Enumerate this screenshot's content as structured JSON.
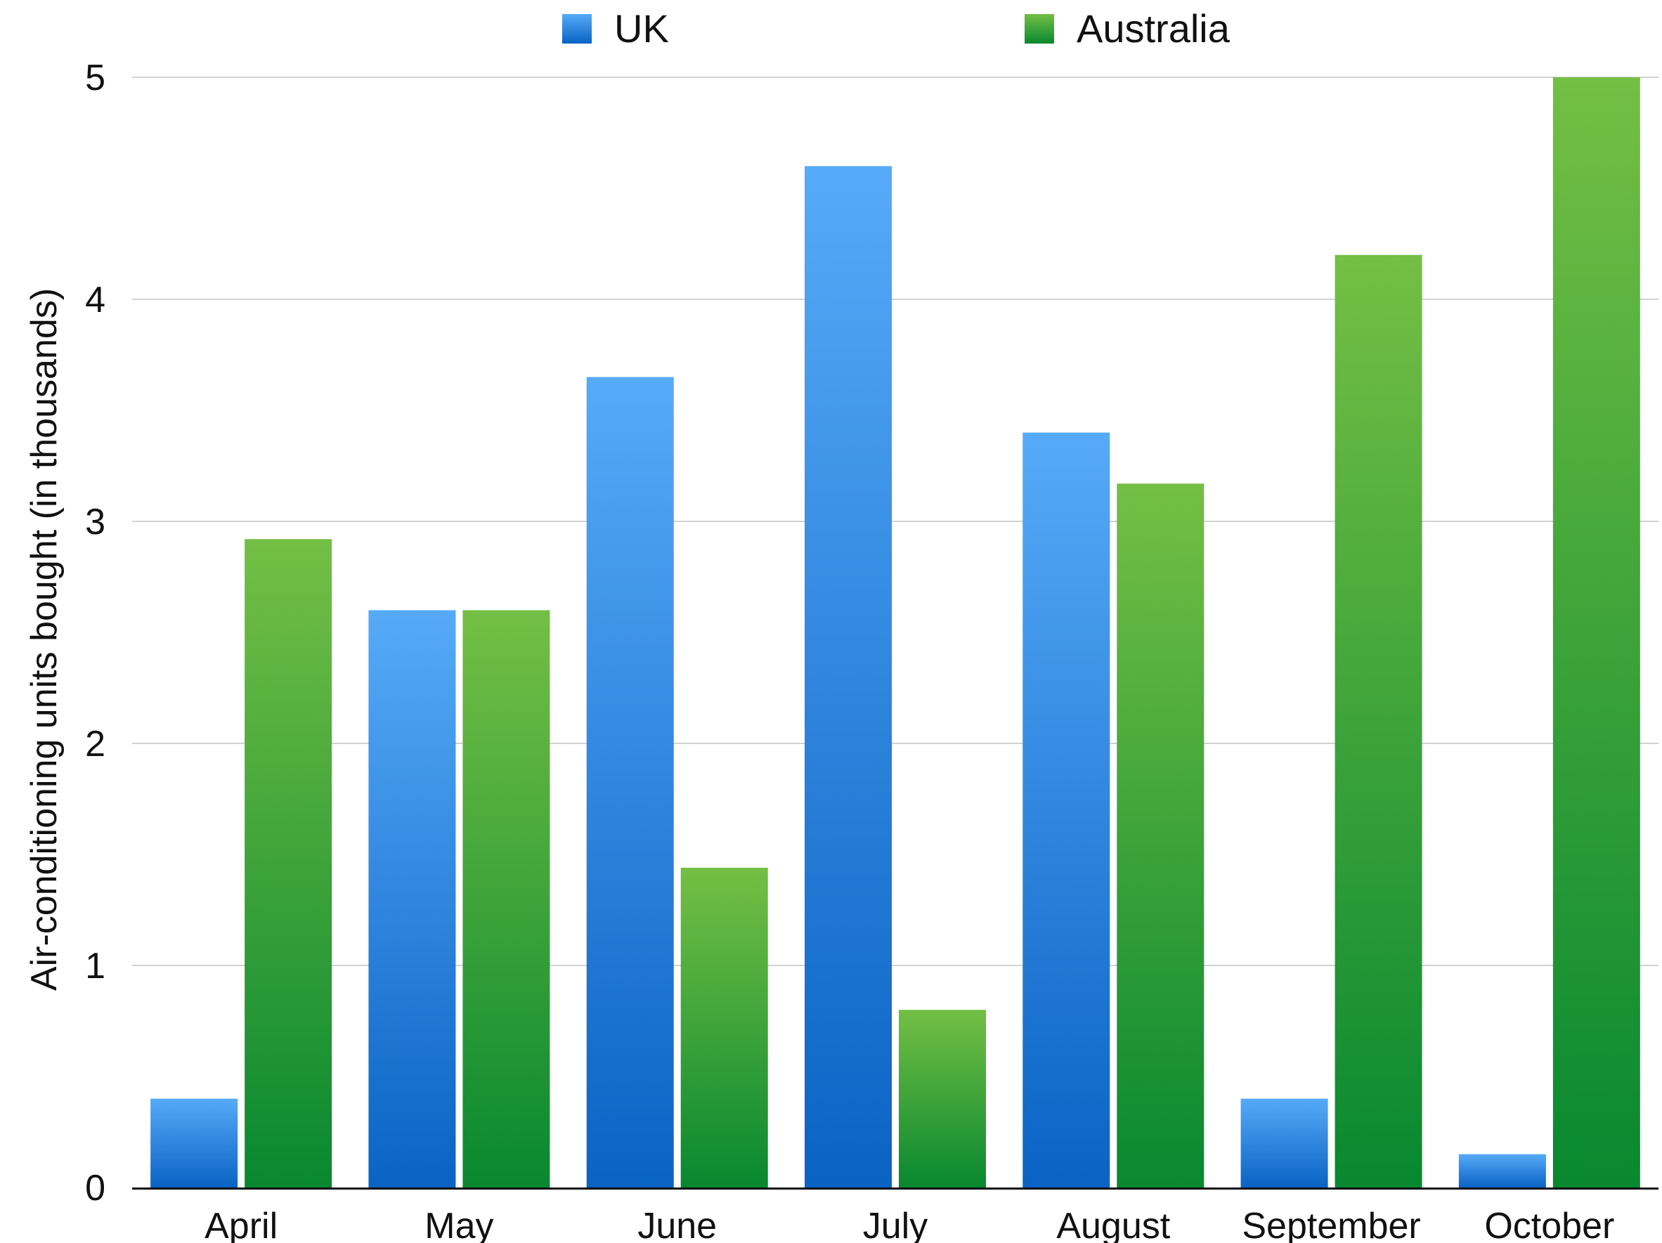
{
  "chart_data": {
    "type": "bar",
    "title": "",
    "xlabel": "",
    "ylabel": "Air-conditioning units bought (in thousands)",
    "categories": [
      "April",
      "May",
      "June",
      "July",
      "August",
      "September",
      "October"
    ],
    "series": [
      {
        "name": "UK",
        "color": "#2f8ae6",
        "values": [
          0.4,
          2.6,
          3.65,
          4.6,
          3.4,
          0.4,
          0.15
        ]
      },
      {
        "name": "Australia",
        "color": "#3aa63a",
        "values": [
          2.92,
          2.6,
          1.44,
          0.8,
          3.17,
          4.2,
          5.0
        ]
      }
    ],
    "yticks": [
      "0",
      "1",
      "2",
      "3",
      "4",
      "5"
    ],
    "ylim": [
      0,
      5
    ],
    "grid": true,
    "legend": "top-center"
  }
}
